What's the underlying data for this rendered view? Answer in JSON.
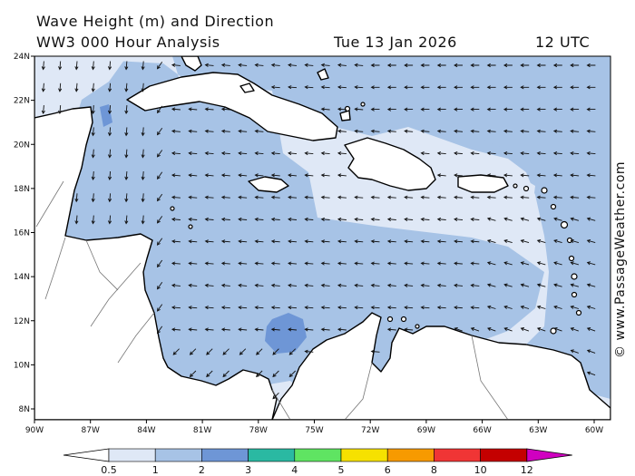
{
  "title": {
    "line1": "Wave Height (m) and Direction",
    "line2": "WW3 000 Hour Analysis",
    "date": "Tue 13 Jan 2026",
    "time": "12 UTC"
  },
  "credit": "© www.PassageWeather.com",
  "map": {
    "lon_range": [
      -90,
      -59.5
    ],
    "lat_range": [
      7.5,
      24
    ],
    "lon_ticks": [
      "90W",
      "87W",
      "84W",
      "81W",
      "78W",
      "75W",
      "72W",
      "69W",
      "66W",
      "63W",
      "60W"
    ],
    "lat_ticks": [
      "24N",
      "22N",
      "20N",
      "18N",
      "16N",
      "14N",
      "12N",
      "10N",
      "8N"
    ],
    "colors": {
      "land": "#ffffff",
      "band_0_5_1": "#dfe8f6",
      "band_1_2": "#a7c3e6",
      "band_2_3": "#6e96d6",
      "arrow": "#111111"
    }
  },
  "colorbar": {
    "labels": [
      "0.5",
      "1",
      "2",
      "3",
      "4",
      "5",
      "6",
      "8",
      "10",
      "12"
    ],
    "colors": [
      "#ffffff",
      "#dfe8f6",
      "#a7c3e6",
      "#6e96d6",
      "#2ab9a2",
      "#5fe462",
      "#f6e100",
      "#f79a00",
      "#f03535",
      "#c40000",
      "#d000c0"
    ]
  }
}
